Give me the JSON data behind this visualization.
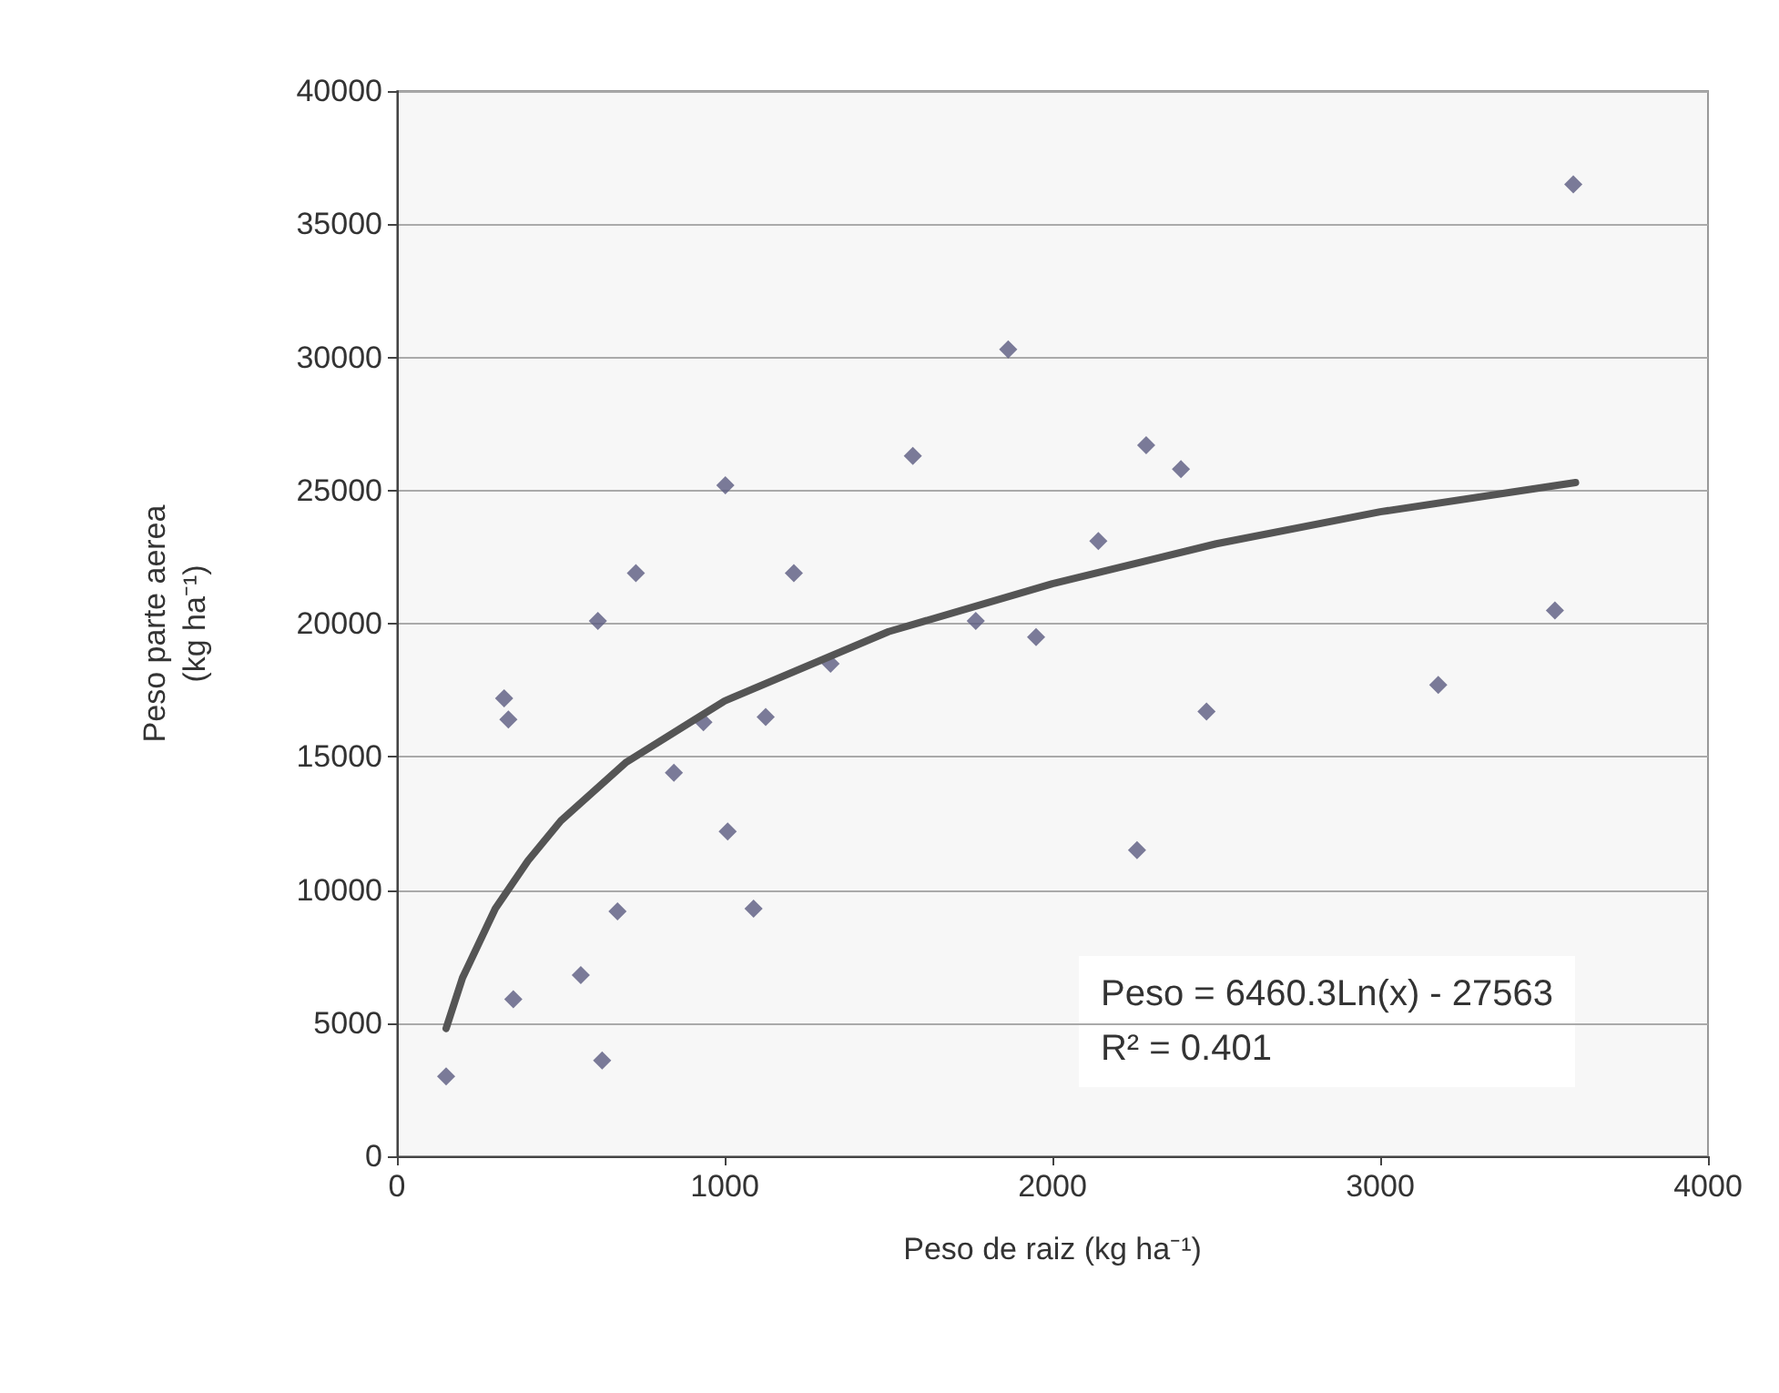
{
  "chart_data": {
    "type": "scatter",
    "xlabel": "Peso de raiz (kg ha⁻¹)",
    "ylabel": "Peso parte aerea (kg ha⁻¹)",
    "xlim": [
      0,
      4000
    ],
    "xticks": [
      0,
      1000,
      2000,
      3000,
      4000
    ],
    "ylim": [
      0,
      40000
    ],
    "yticks": [
      0,
      5000,
      10000,
      15000,
      20000,
      25000,
      30000,
      35000,
      40000
    ],
    "grid": "y",
    "marker": "diamond",
    "series": [
      {
        "color": "#5a5a80",
        "x": [
          150,
          327,
          340,
          355,
          613,
          561,
          626,
          673,
          845,
          935,
          1009,
          1088,
          1125,
          1323,
          1766,
          1950,
          1865,
          1574,
          1002,
          729,
          1211,
          2286,
          2392,
          2140,
          3589,
          3533,
          2470,
          3177,
          2258
        ],
        "values": [
          3000,
          17200,
          16400,
          5900,
          20100,
          6800,
          3600,
          9200,
          14400,
          16300,
          12200,
          9300,
          16500,
          18500,
          20100,
          19500,
          30300,
          26300,
          25200,
          21900,
          21900,
          26700,
          25800,
          23100,
          36500,
          20500,
          16700,
          17700,
          11500
        ]
      },
      {
        "type": "line",
        "color": "#555555",
        "marker": "none",
        "x": [
          150,
          200,
          300,
          400,
          500,
          700,
          1000,
          1500,
          2000,
          2500,
          3000,
          3596
        ],
        "values": [
          4800,
          6700,
          9300,
          11100,
          12600,
          14800,
          17100,
          19700,
          21500,
          23000,
          24200,
          25300
        ]
      }
    ],
    "annotations": [
      "Peso = 6460.3Ln(x) - 27563",
      "R² = 0.401"
    ]
  }
}
